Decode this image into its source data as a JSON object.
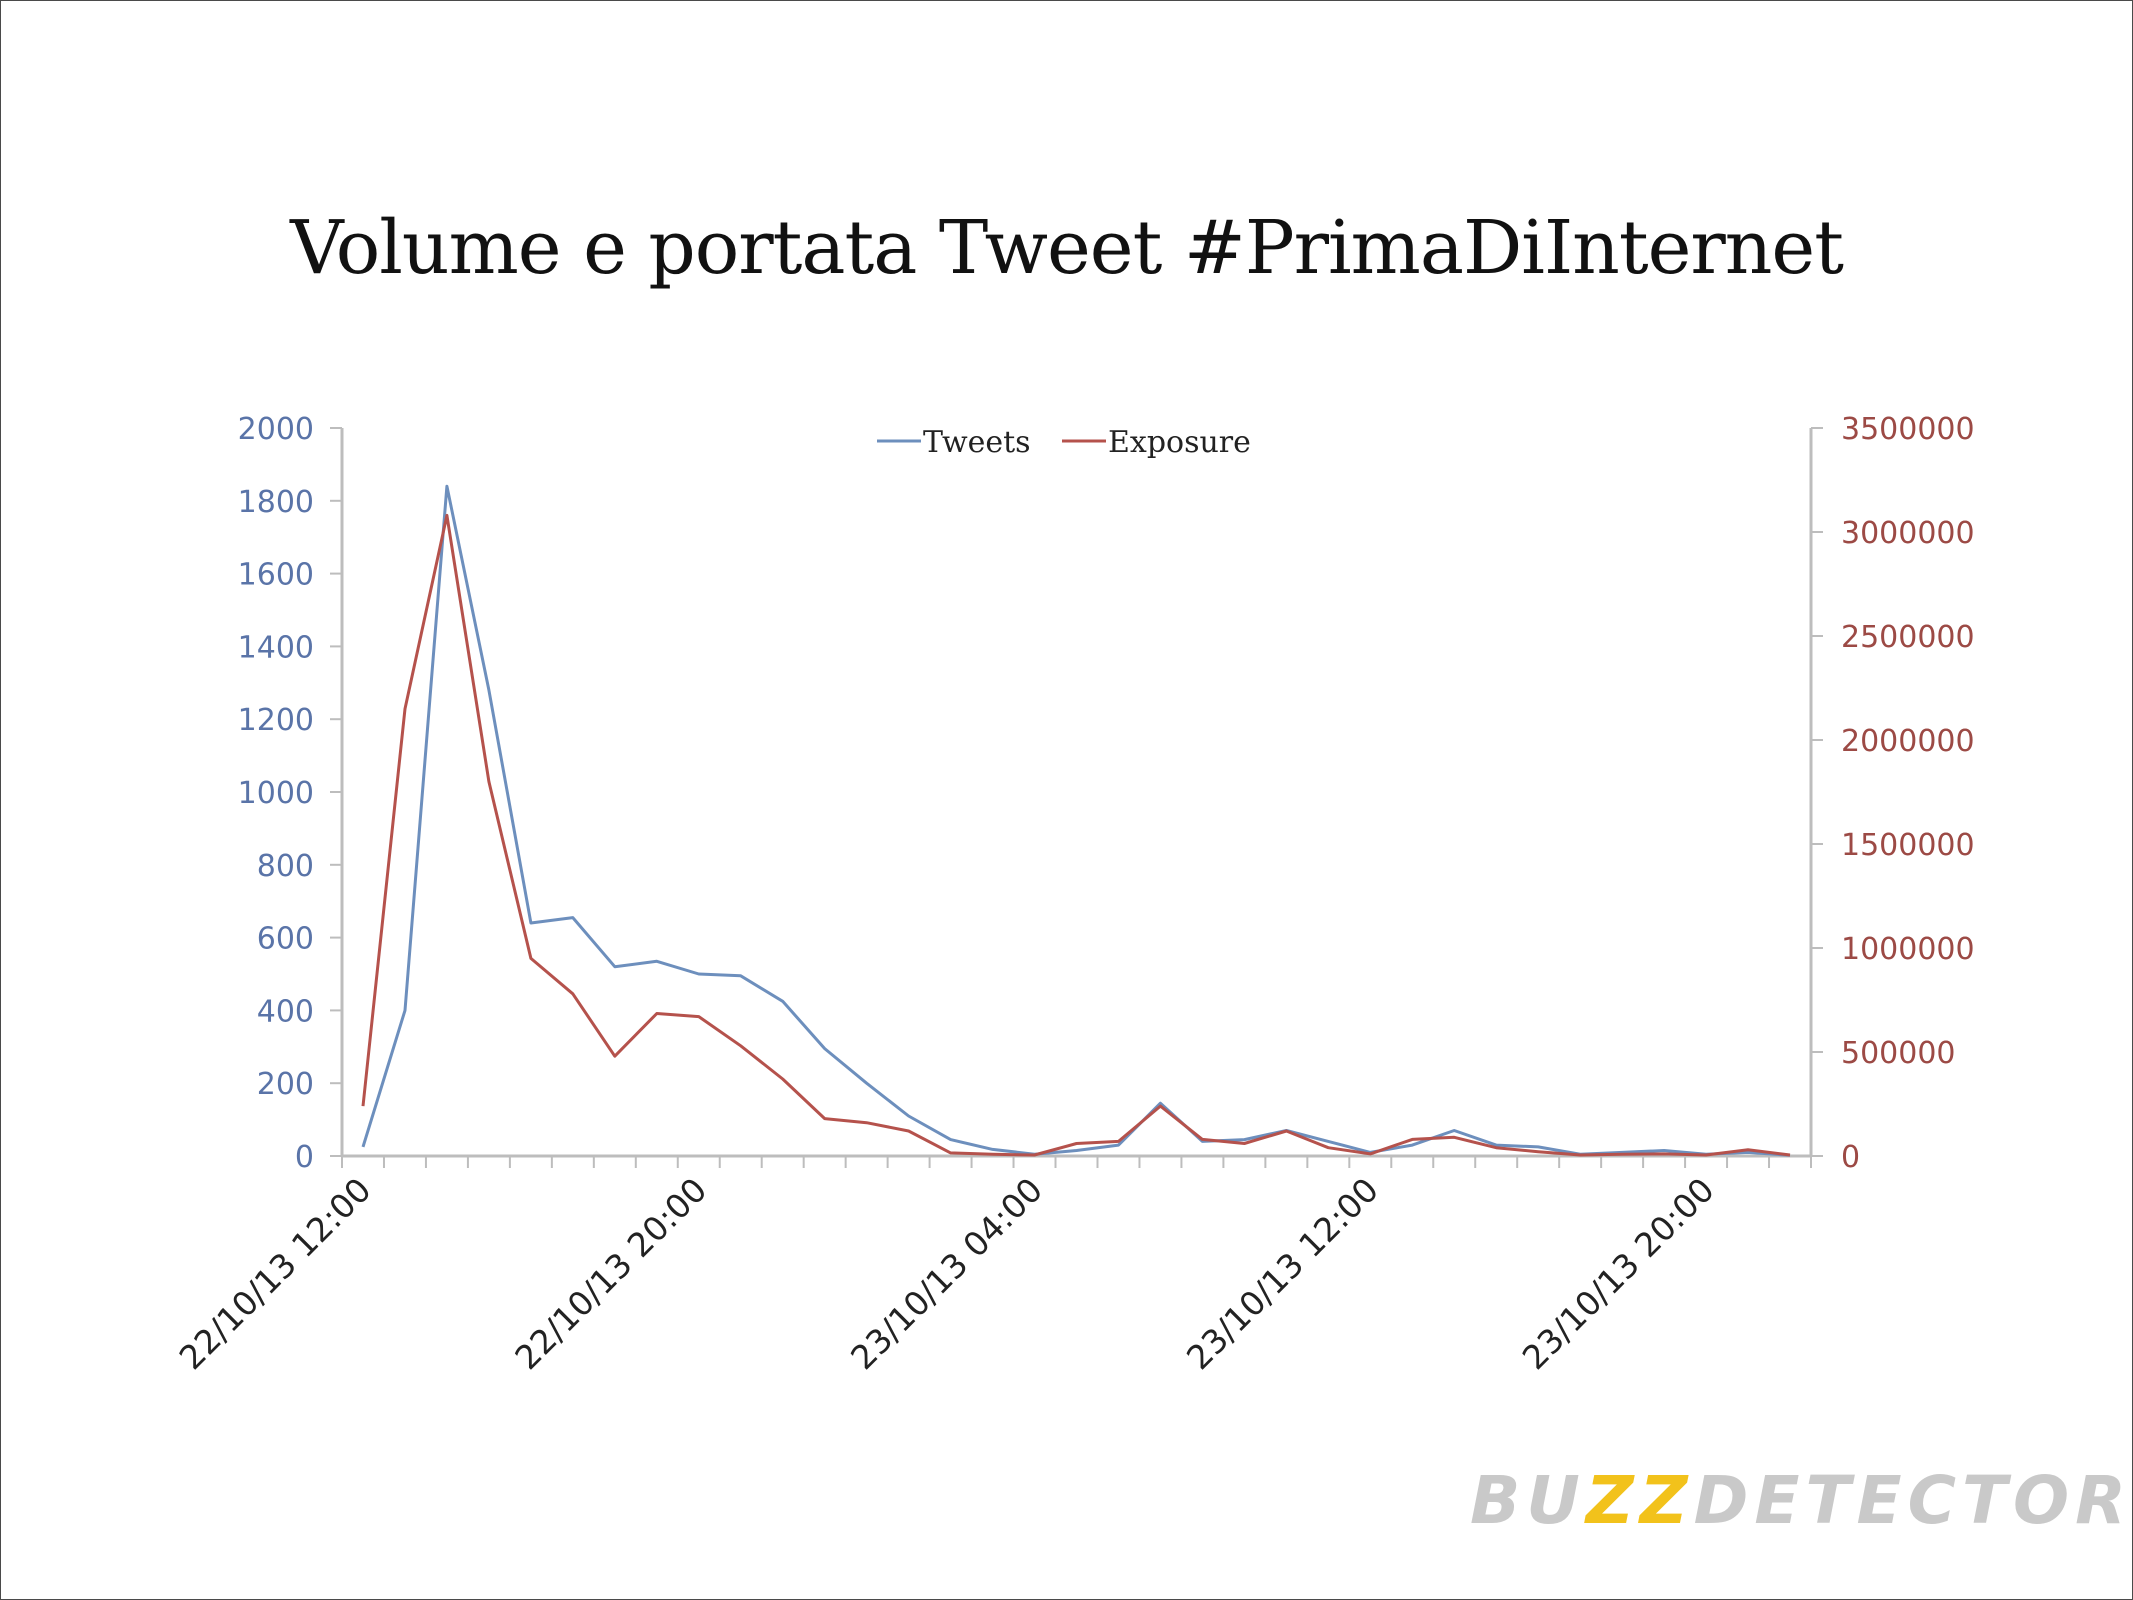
{
  "chart_data": {
    "type": "line",
    "title": "Volume e portata Tweet #PrimaDiInternet",
    "legend": {
      "placement": "top-center",
      "entries": [
        "Tweets",
        "Exposure"
      ]
    },
    "x_tick_labels": [
      "22/10/13 12:00",
      "22/10/13 20:00",
      "23/10/13 04:00",
      "23/10/13 12:00",
      "23/10/13 20:00"
    ],
    "x_tick_indices": [
      0,
      8,
      16,
      24,
      32
    ],
    "y_left": {
      "min": 0,
      "max": 2000,
      "ticks": [
        "0",
        "200",
        "400",
        "600",
        "800",
        "1000",
        "1200",
        "1400",
        "1600",
        "1800",
        "2000"
      ]
    },
    "y_right": {
      "min": 0,
      "max": 3500000,
      "ticks": [
        "0",
        "500000",
        "1000000",
        "1500000",
        "2000000",
        "2500000",
        "3000000",
        "3500000"
      ]
    },
    "grid": false,
    "series": [
      {
        "name": "Tweets",
        "axis": "left",
        "color": "#6d8fbd",
        "values": [
          25,
          400,
          1840,
          1280,
          640,
          655,
          520,
          535,
          500,
          495,
          425,
          295,
          200,
          110,
          45,
          18,
          5,
          15,
          30,
          145,
          40,
          45,
          70,
          40,
          10,
          30,
          70,
          30,
          25,
          5,
          10,
          15,
          5,
          10,
          2
        ]
      },
      {
        "name": "Exposure",
        "axis": "right",
        "color": "#b5524c",
        "values": [
          240000,
          2150000,
          3080000,
          1800000,
          950000,
          780000,
          480000,
          685000,
          670000,
          530000,
          370000,
          180000,
          160000,
          120000,
          15000,
          8000,
          5000,
          60000,
          70000,
          240000,
          80000,
          60000,
          120000,
          40000,
          10000,
          80000,
          90000,
          40000,
          20000,
          5000,
          8000,
          10000,
          5000,
          30000,
          5000
        ]
      }
    ]
  },
  "logo": {
    "text_main_1": "BU",
    "text_zz": "ZZ",
    "text_main_2": "DETECTOR",
    "reg": "®"
  }
}
